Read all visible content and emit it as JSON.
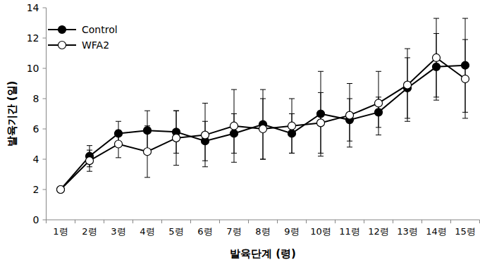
{
  "chart_data": {
    "type": "line",
    "x_label": "발육단계 (령)",
    "y_label": "발육기간 (일)",
    "categories": [
      "1령",
      "2령",
      "3령",
      "4령",
      "5령",
      "6령",
      "7령",
      "8령",
      "9령",
      "10령",
      "11령",
      "12령",
      "13령",
      "14령",
      "15령"
    ],
    "series": [
      {
        "name": "Control",
        "color": "#000000",
        "marker": "circle",
        "values": [
          2.0,
          4.2,
          5.7,
          5.9,
          5.8,
          5.2,
          5.7,
          6.3,
          5.7,
          7.0,
          6.6,
          7.1,
          8.7,
          10.1,
          10.2
        ],
        "errors": [
          0,
          0.7,
          0.8,
          1.3,
          1.4,
          1.3,
          1.3,
          2.3,
          1.3,
          2.8,
          1.4,
          1.0,
          2.0,
          2.2,
          3.1
        ]
      },
      {
        "name": "WFA2",
        "color": "#000000",
        "marker": "open_circle",
        "values": [
          2.0,
          3.9,
          5.0,
          4.5,
          5.4,
          5.6,
          6.2,
          6.0,
          6.2,
          6.4,
          6.9,
          7.7,
          8.9,
          10.7,
          9.3
        ],
        "errors": [
          0,
          0.7,
          0.9,
          1.7,
          1.8,
          2.1,
          2.4,
          2.0,
          1.8,
          2.0,
          2.1,
          2.1,
          2.4,
          2.6,
          2.6
        ]
      }
    ],
    "ylim": [
      0,
      14
    ],
    "yticks": [
      0,
      2,
      4,
      6,
      8,
      10,
      12,
      14
    ],
    "grid": false,
    "legend": "upper left"
  }
}
